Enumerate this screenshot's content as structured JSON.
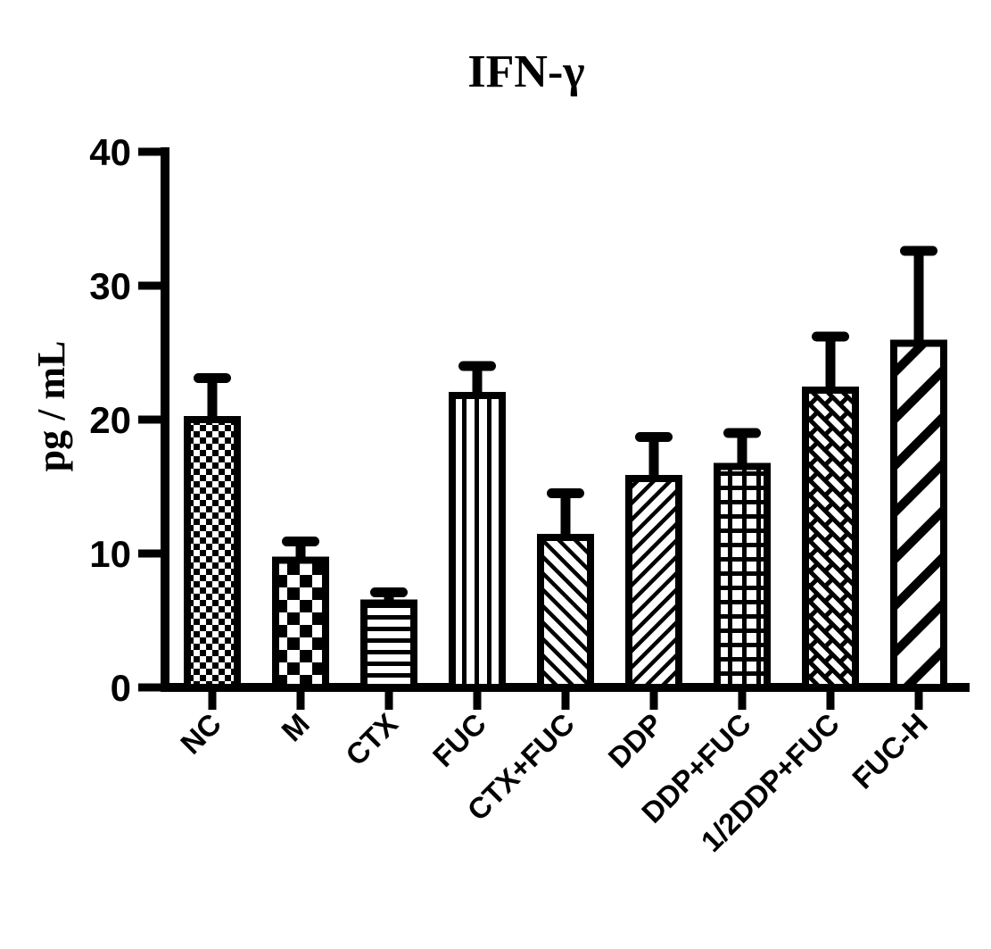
{
  "figure": {
    "title": "IFN-γ",
    "background_color": "#ffffff",
    "ink_color": "#000000"
  },
  "chart_data": {
    "type": "bar",
    "title": "IFN-γ",
    "xlabel": "",
    "ylabel": "pg / mL",
    "ylim": [
      0,
      40
    ],
    "yticks": [
      0,
      10,
      20,
      30,
      40
    ],
    "grid": false,
    "legend_position": "none",
    "bar_style": "monochrome-patterned-with-upper-sem-error-bars",
    "categories": [
      "NC",
      "M",
      "CTX",
      "FUC",
      "CTX+FUC",
      "DDP",
      "DDP+FUC",
      "1/2DDP+FUC",
      "FUC-H"
    ],
    "values": [
      20.0,
      9.5,
      6.3,
      21.8,
      11.2,
      15.6,
      16.5,
      22.2,
      25.7
    ],
    "errors_upper_sem": [
      3.1,
      1.4,
      0.8,
      2.2,
      3.3,
      3.1,
      2.5,
      4.0,
      6.9
    ],
    "bar_patterns": [
      "checker-fine",
      "checker-coarse",
      "horizontal-lines",
      "vertical-lines",
      "diagonal-forward",
      "diagonal-backward",
      "grid-lines",
      "diagonal-brick",
      "diagonal-thick-backward"
    ]
  }
}
